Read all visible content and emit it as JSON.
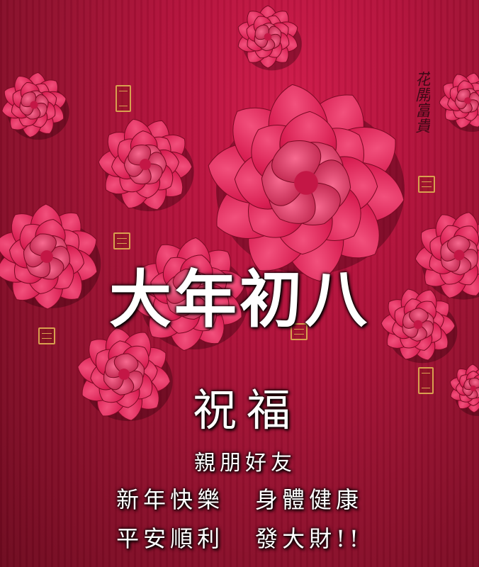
{
  "card": {
    "title": "大年初八",
    "blessing": "祝福",
    "line1": "親朋好友",
    "line2a": "新年快樂",
    "line2b": "身體健康",
    "line3a": "平安順利",
    "line3b": "發大財!!",
    "signature": "花開富貴"
  },
  "colors": {
    "background": "#b5123c",
    "flower": "#e0245a",
    "flower_dark": "#9e0f33",
    "text": "#ffffff",
    "seal": "#d8a050"
  },
  "icons": [
    "paper-flower-icon",
    "seal-stamp-icon"
  ]
}
